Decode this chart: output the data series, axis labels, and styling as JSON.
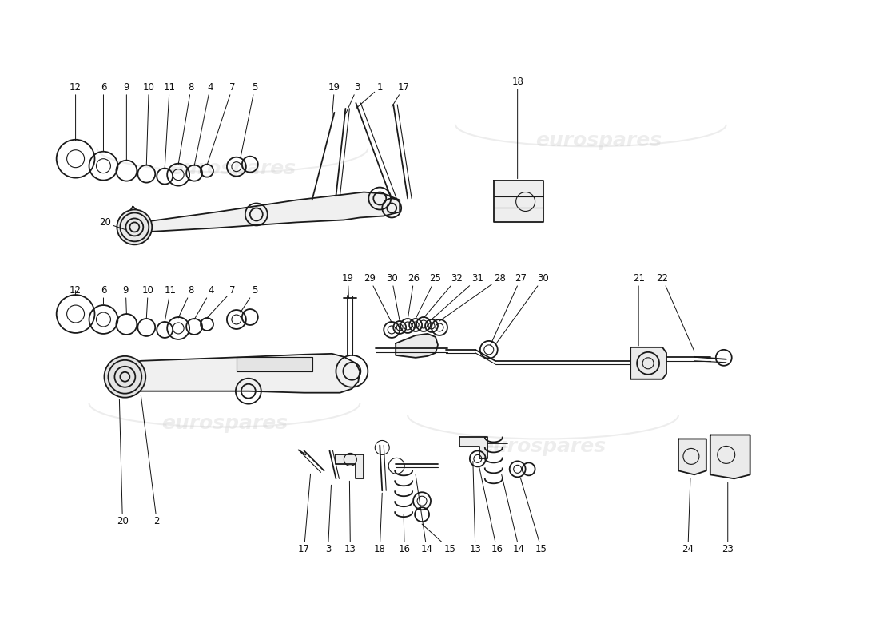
{
  "background_color": "#ffffff",
  "watermark_text": "eurospares",
  "watermark_color": "#c8c8c8",
  "line_color": "#1a1a1a",
  "label_color": "#111111",
  "label_fontsize": 8.5,
  "fig_width": 11.0,
  "fig_height": 8.0
}
